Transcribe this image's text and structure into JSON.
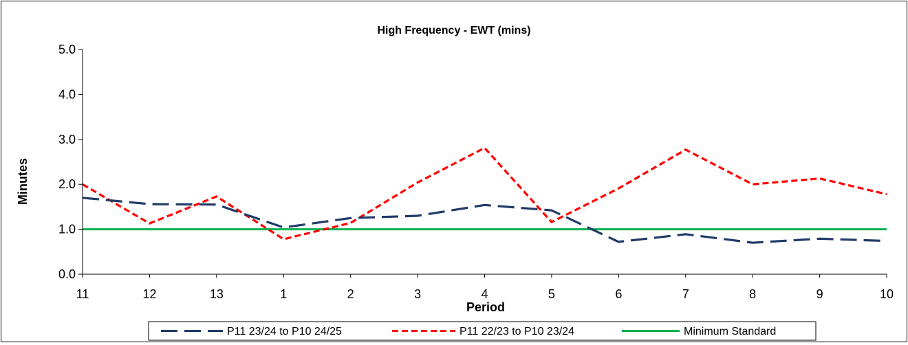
{
  "chart_data": {
    "type": "line",
    "title": "High Frequency - EWT (mins)",
    "xlabel": "Period",
    "ylabel": "Minutes",
    "categories": [
      "11",
      "12",
      "13",
      "1",
      "2",
      "3",
      "4",
      "5",
      "6",
      "7",
      "8",
      "9",
      "10"
    ],
    "ylim": [
      0,
      5
    ],
    "yticks": [
      "0.0",
      "1.0",
      "2.0",
      "3.0",
      "4.0",
      "5.0"
    ],
    "grid": false,
    "legend_position": "bottom",
    "series": [
      {
        "name": "P11 23/24 to P10 24/25",
        "color": "#1F3A66",
        "style": "long-dash",
        "values": [
          1.7,
          1.56,
          1.55,
          1.04,
          1.25,
          1.3,
          1.54,
          1.42,
          0.72,
          0.89,
          0.7,
          0.79,
          0.74
        ]
      },
      {
        "name": "P11 22/23 to P10 23/24",
        "color": "#FF0000",
        "style": "short-dash",
        "values": [
          2.0,
          1.13,
          1.73,
          0.78,
          1.14,
          2.04,
          2.81,
          1.16,
          1.91,
          2.77,
          2.0,
          2.13,
          1.78
        ]
      },
      {
        "name": "Minimum Standard",
        "color": "#00B050",
        "style": "solid",
        "values": [
          1,
          1,
          1,
          1,
          1,
          1,
          1,
          1,
          1,
          1,
          1,
          1,
          1
        ]
      }
    ]
  }
}
